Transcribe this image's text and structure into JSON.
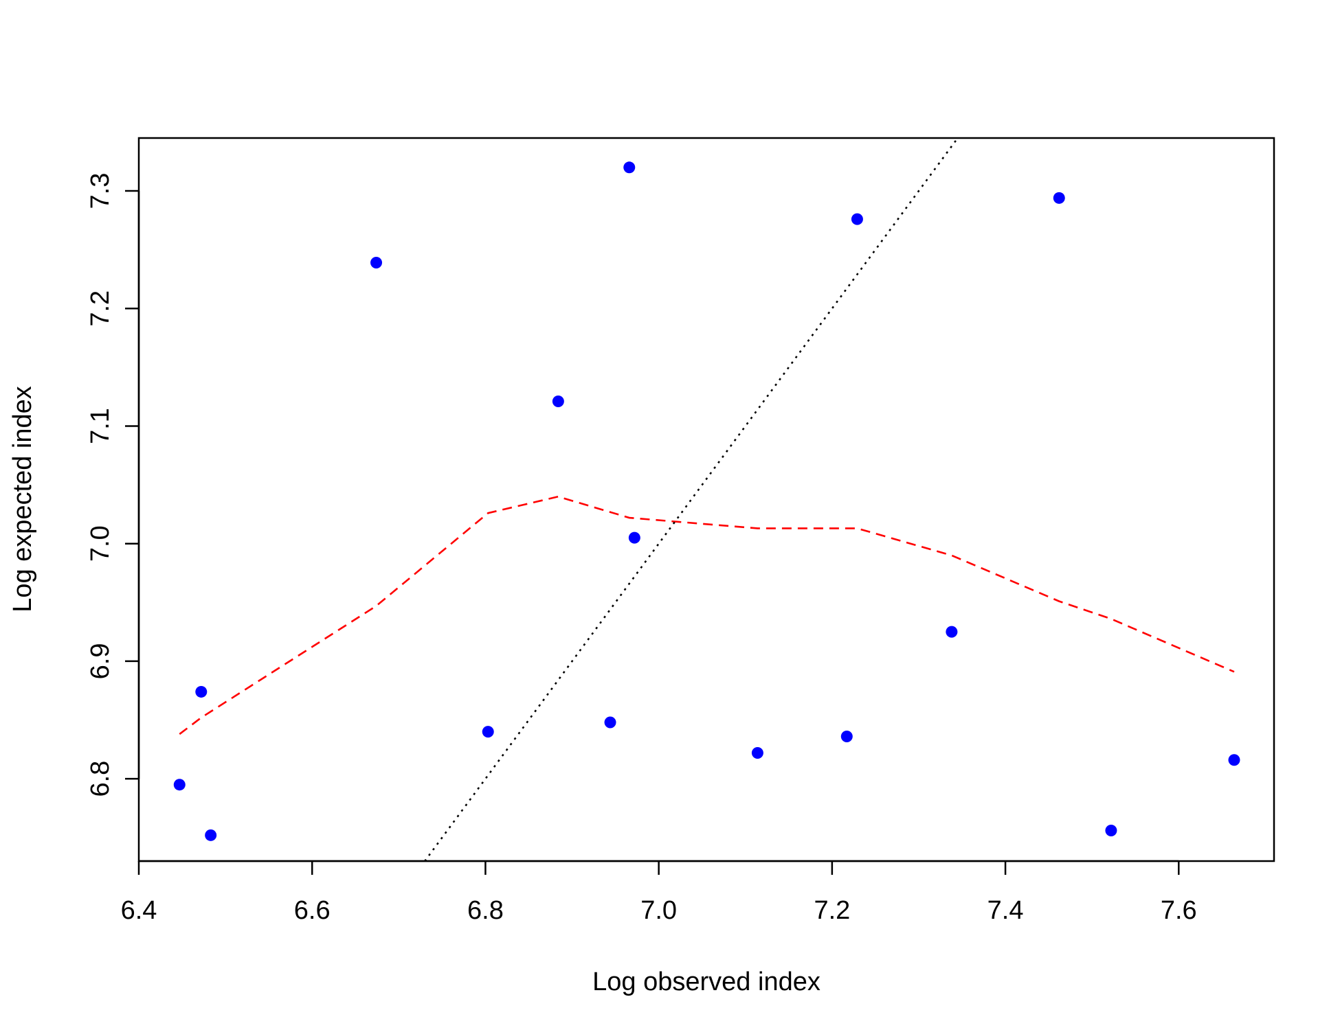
{
  "chart_data": {
    "type": "scatter",
    "title": "",
    "xlabel": "Log observed index",
    "ylabel": "Log expected index",
    "xlim": [
      6.4,
      7.71
    ],
    "ylim": [
      6.73,
      7.345
    ],
    "x_ticks": [
      "6.4",
      "6.6",
      "6.8",
      "7.0",
      "7.2",
      "7.4",
      "7.6"
    ],
    "y_ticks": [
      "6.8",
      "6.9",
      "7.0",
      "7.1",
      "7.2",
      "7.3"
    ],
    "grid": false,
    "legend": "none",
    "colors": {
      "points": "#0000ff",
      "smooth": "#ff0000",
      "identity": "#000000"
    },
    "series": [
      {
        "kind": "points",
        "x": [
          6.447,
          6.472,
          6.483,
          6.674,
          6.803,
          6.884,
          6.944,
          6.966,
          6.972,
          7.114,
          7.217,
          7.229,
          7.338,
          7.462,
          7.522,
          7.664
        ],
        "y": [
          6.795,
          6.874,
          6.752,
          7.239,
          6.84,
          7.121,
          6.848,
          7.32,
          7.005,
          6.822,
          6.836,
          7.276,
          6.925,
          7.294,
          6.756,
          6.816
        ]
      },
      {
        "kind": "dashed-line",
        "x": [
          6.447,
          6.472,
          6.674,
          6.803,
          6.884,
          6.966,
          7.114,
          7.229,
          7.338,
          7.462,
          7.522,
          7.664
        ],
        "y": [
          6.838,
          6.852,
          6.947,
          7.026,
          7.04,
          7.022,
          7.013,
          7.013,
          6.99,
          6.951,
          6.936,
          6.891
        ]
      },
      {
        "kind": "dotted-line",
        "x": [
          6.73,
          7.345
        ],
        "y": [
          6.73,
          7.345
        ]
      }
    ]
  }
}
